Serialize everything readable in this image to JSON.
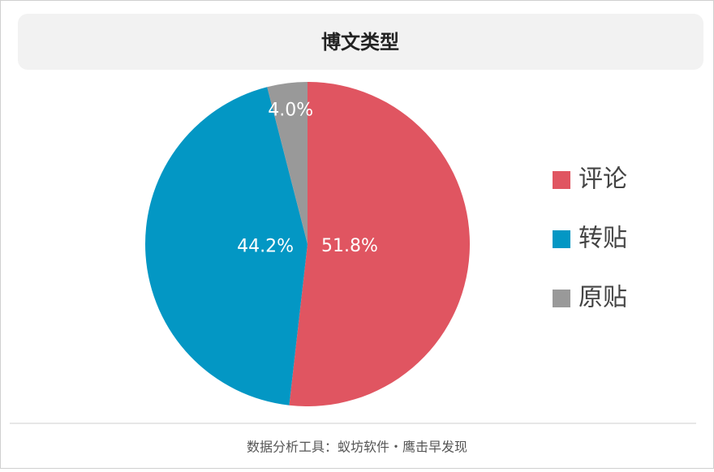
{
  "chart_data": {
    "type": "pie",
    "title": "博文类型",
    "categories": [
      "评论",
      "转贴",
      "原贴"
    ],
    "values": [
      51.8,
      44.2,
      4.0
    ],
    "value_labels": [
      "51.8%",
      "44.2%",
      "4.0%"
    ],
    "colors": [
      "#e05561",
      "#0397c4",
      "#999999"
    ],
    "legend": "right",
    "footer": "数据分析工具：蚁坊软件・鹰击早发现"
  }
}
